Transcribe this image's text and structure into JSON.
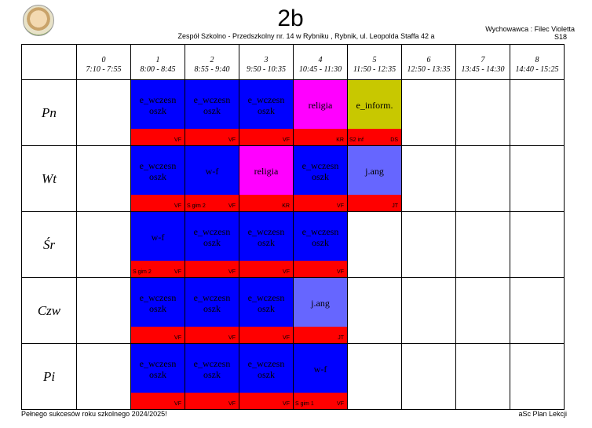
{
  "header": {
    "class_name": "2b",
    "school": "Zespół Szkolno - Przedszkolny nr. 14 w Rybniku  , Rybnik, ul. Leopolda Staffa 42 a",
    "teacher": "Wychowawca : Filec Violetta",
    "room": "S18"
  },
  "periods": [
    {
      "num": "0",
      "time": "7:10 - 7:55"
    },
    {
      "num": "1",
      "time": "8:00 - 8:45"
    },
    {
      "num": "2",
      "time": "8:55 - 9:40"
    },
    {
      "num": "3",
      "time": "9:50 - 10:35"
    },
    {
      "num": "4",
      "time": "10:45 - 11:30"
    },
    {
      "num": "5",
      "time": "11:50 - 12:35"
    },
    {
      "num": "6",
      "time": "12:50 - 13:35"
    },
    {
      "num": "7",
      "time": "13:45 - 14:30"
    },
    {
      "num": "8",
      "time": "14:40 - 15:25"
    }
  ],
  "colors": {
    "blue": "#0000ff",
    "magenta": "#ff00ff",
    "olive": "#c8c800",
    "periwinkle": "#6666ff",
    "bar": "#ff0000"
  },
  "days": [
    {
      "name": "Pn",
      "lessons": [
        null,
        {
          "subject": "e_wczesn oszk",
          "teacher": "VF",
          "room": "",
          "color": "#0000ff"
        },
        {
          "subject": "e_wczesn oszk",
          "teacher": "VF",
          "room": "",
          "color": "#0000ff"
        },
        {
          "subject": "e_wczesn oszk",
          "teacher": "VF",
          "room": "",
          "color": "#0000ff"
        },
        {
          "subject": "religia",
          "teacher": "KR",
          "room": "",
          "color": "#ff00ff"
        },
        {
          "subject": "e_inform.",
          "teacher": "DS",
          "room": "S2 inf",
          "color": "#c8c800"
        },
        null,
        null,
        null
      ]
    },
    {
      "name": "Wt",
      "lessons": [
        null,
        {
          "subject": "e_wczesn oszk",
          "teacher": "VF",
          "room": "",
          "color": "#0000ff"
        },
        {
          "subject": "w-f",
          "teacher": "VF",
          "room": "S gim 2",
          "color": "#0000ff"
        },
        {
          "subject": "religia",
          "teacher": "KR",
          "room": "",
          "color": "#ff00ff"
        },
        {
          "subject": "e_wczesn oszk",
          "teacher": "VF",
          "room": "",
          "color": "#0000ff"
        },
        {
          "subject": "j.ang",
          "teacher": "JT",
          "room": "",
          "color": "#6666ff"
        },
        null,
        null,
        null
      ]
    },
    {
      "name": "Śr",
      "lessons": [
        null,
        {
          "subject": "w-f",
          "teacher": "VF",
          "room": "S gim 2",
          "color": "#0000ff"
        },
        {
          "subject": "e_wczesn oszk",
          "teacher": "VF",
          "room": "",
          "color": "#0000ff"
        },
        {
          "subject": "e_wczesn oszk",
          "teacher": "VF",
          "room": "",
          "color": "#0000ff"
        },
        {
          "subject": "e_wczesn oszk",
          "teacher": "VF",
          "room": "",
          "color": "#0000ff"
        },
        null,
        null,
        null,
        null
      ]
    },
    {
      "name": "Czw",
      "lessons": [
        null,
        {
          "subject": "e_wczesn oszk",
          "teacher": "VF",
          "room": "",
          "color": "#0000ff"
        },
        {
          "subject": "e_wczesn oszk",
          "teacher": "VF",
          "room": "",
          "color": "#0000ff"
        },
        {
          "subject": "e_wczesn oszk",
          "teacher": "VF",
          "room": "",
          "color": "#0000ff"
        },
        {
          "subject": "j.ang",
          "teacher": "JT",
          "room": "",
          "color": "#6666ff"
        },
        null,
        null,
        null,
        null
      ]
    },
    {
      "name": "Pi",
      "lessons": [
        null,
        {
          "subject": "e_wczesn oszk",
          "teacher": "VF",
          "room": "",
          "color": "#0000ff"
        },
        {
          "subject": "e_wczesn oszk",
          "teacher": "VF",
          "room": "",
          "color": "#0000ff"
        },
        {
          "subject": "e_wczesn oszk",
          "teacher": "VF",
          "room": "",
          "color": "#0000ff"
        },
        {
          "subject": "w-f",
          "teacher": "VF",
          "room": "S gim 1",
          "color": "#0000ff"
        },
        null,
        null,
        null,
        null
      ]
    }
  ],
  "footer": {
    "left": "Pełnego sukcesów roku szkolnego 2024/2025!",
    "right": "aSc Plan Lekcji"
  }
}
